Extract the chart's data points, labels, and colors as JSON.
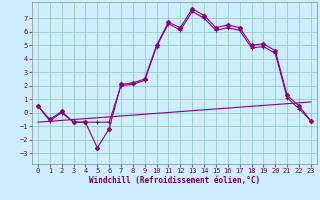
{
  "xlabel": "Windchill (Refroidissement éolien,°C)",
  "background_color": "#cceeff",
  "grid_color": "#99ccbb",
  "line_color": "#880088",
  "x_ticks": [
    0,
    1,
    2,
    3,
    4,
    5,
    6,
    7,
    8,
    9,
    10,
    11,
    12,
    13,
    14,
    15,
    16,
    17,
    18,
    19,
    20,
    21,
    22,
    23
  ],
  "y_ticks": [
    -3,
    -2,
    -1,
    0,
    1,
    2,
    3,
    4,
    5,
    6,
    7
  ],
  "ylim": [
    -3.8,
    8.2
  ],
  "xlim": [
    -0.5,
    23.5
  ],
  "line1_x": [
    0,
    1,
    2,
    3,
    4,
    5,
    6,
    7,
    8,
    9,
    10,
    11,
    12,
    13,
    14,
    15,
    16,
    17,
    18,
    19,
    20,
    21,
    22,
    23
  ],
  "line1_y": [
    0.5,
    -0.5,
    0.1,
    -0.7,
    -0.7,
    -2.6,
    -1.2,
    2.1,
    2.2,
    2.5,
    5.0,
    6.7,
    6.3,
    7.7,
    7.2,
    6.3,
    6.5,
    6.3,
    5.0,
    5.1,
    4.6,
    1.3,
    0.5,
    -0.6
  ],
  "line2_x": [
    0,
    1,
    2,
    3,
    4,
    5,
    6,
    7,
    8,
    9,
    10,
    11,
    12,
    13,
    14,
    15,
    16,
    17,
    18,
    19,
    20,
    21,
    22,
    23
  ],
  "line2_y": [
    0.5,
    -0.6,
    0.0,
    -0.7,
    -0.7,
    -0.7,
    -0.7,
    2.0,
    2.1,
    2.4,
    4.9,
    6.6,
    6.1,
    7.5,
    7.0,
    6.1,
    6.3,
    6.1,
    4.8,
    4.9,
    4.4,
    1.1,
    0.3,
    -0.6
  ],
  "line3_x": [
    0,
    23
  ],
  "line3_y": [
    -0.7,
    0.8
  ]
}
